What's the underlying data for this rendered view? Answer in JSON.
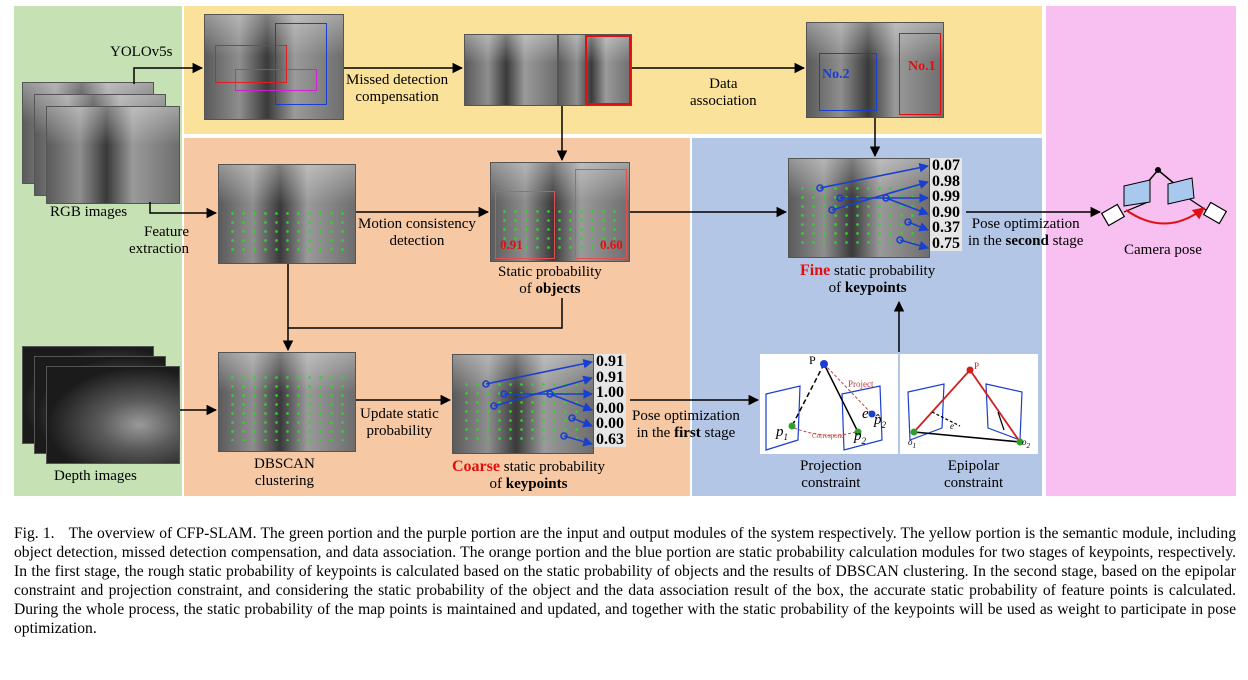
{
  "diagram": {
    "labels": {
      "yolo": "YOLOv5s",
      "rgb_images": "RGB images",
      "feature_extraction_1": "Feature",
      "feature_extraction_2": "extraction",
      "depth_images": "Depth images",
      "missed_1": "Missed detection",
      "missed_2": "compensation",
      "data_assoc_1": "Data",
      "data_assoc_2": "association",
      "motion_1": "Motion consistency",
      "motion_2": "detection",
      "static_obj_1": "Static probability",
      "static_obj_2a": "of ",
      "static_obj_2b": "objects",
      "dbscan_1": "DBSCAN",
      "dbscan_2": "clustering",
      "update_1": "Update static",
      "update_2": "probability",
      "coarse_word": "Coarse",
      "coarse_rest": " static probability",
      "coarse_2a": "of ",
      "coarse_2b": "keypoints",
      "pose1_1": "Pose optimization",
      "pose1_2a": "in the ",
      "pose1_2b": "first",
      "pose1_2c": " stage",
      "fine_word": "Fine",
      "fine_rest": " static probability",
      "fine_2a": "of ",
      "fine_2b": "keypoints",
      "pose2_1": "Pose optimization",
      "pose2_2a": "in the ",
      "pose2_2b": "second",
      "pose2_2c": " stage",
      "camera_pose": "Camera pose",
      "proj_1": "Projection",
      "proj_2": "constraint",
      "epi_1": "Epipolar",
      "epi_2": "constraint",
      "no2": "No.2",
      "no1": "No.1",
      "obj_p1": "0.91",
      "obj_p2": "0.60",
      "proj_P": "P",
      "proj_project": "Project",
      "proj_p1": "p",
      "proj_p2hat": "p̂",
      "proj_p2": "p",
      "proj_e": "e",
      "proj_correspond": "Correspond",
      "epi_P": "P",
      "epi_e": "e",
      "epi_o1": "o",
      "epi_o2": "o"
    },
    "fine_values": [
      "0.07",
      "0.98",
      "0.99",
      "0.90",
      "0.37",
      "0.75"
    ],
    "coarse_values": [
      "0.91",
      "0.91",
      "1.00",
      "0.00",
      "0.00",
      "0.63"
    ],
    "colors": {
      "green": "#c6e2b4",
      "yellow": "#fbe29a",
      "orange": "#f6c8a4",
      "blue": "#b4c6e6",
      "purple": "#f7c0f0"
    }
  },
  "caption": {
    "figno": "Fig. 1.",
    "text": "The overview of CFP-SLAM. The green portion and the purple portion are the input and output modules of the system respectively. The yellow portion is the semantic module, including object detection, missed detection compensation, and data association. The orange portion and the blue portion are static probability calculation modules for two stages of keypoints, respectively. In the first stage, the rough static probability of keypoints is calculated based on the static probability of objects and the results of DBSCAN clustering. In the second stage, based on the epipolar constraint and projection constraint, and considering the static probability of the object and the data association result of the box, the accurate static probability of feature points is calculated. During the whole process, the static probability of the map points is maintained and updated, and together with the static probability of the keypoints will be used as weight to participate in pose optimization."
  }
}
